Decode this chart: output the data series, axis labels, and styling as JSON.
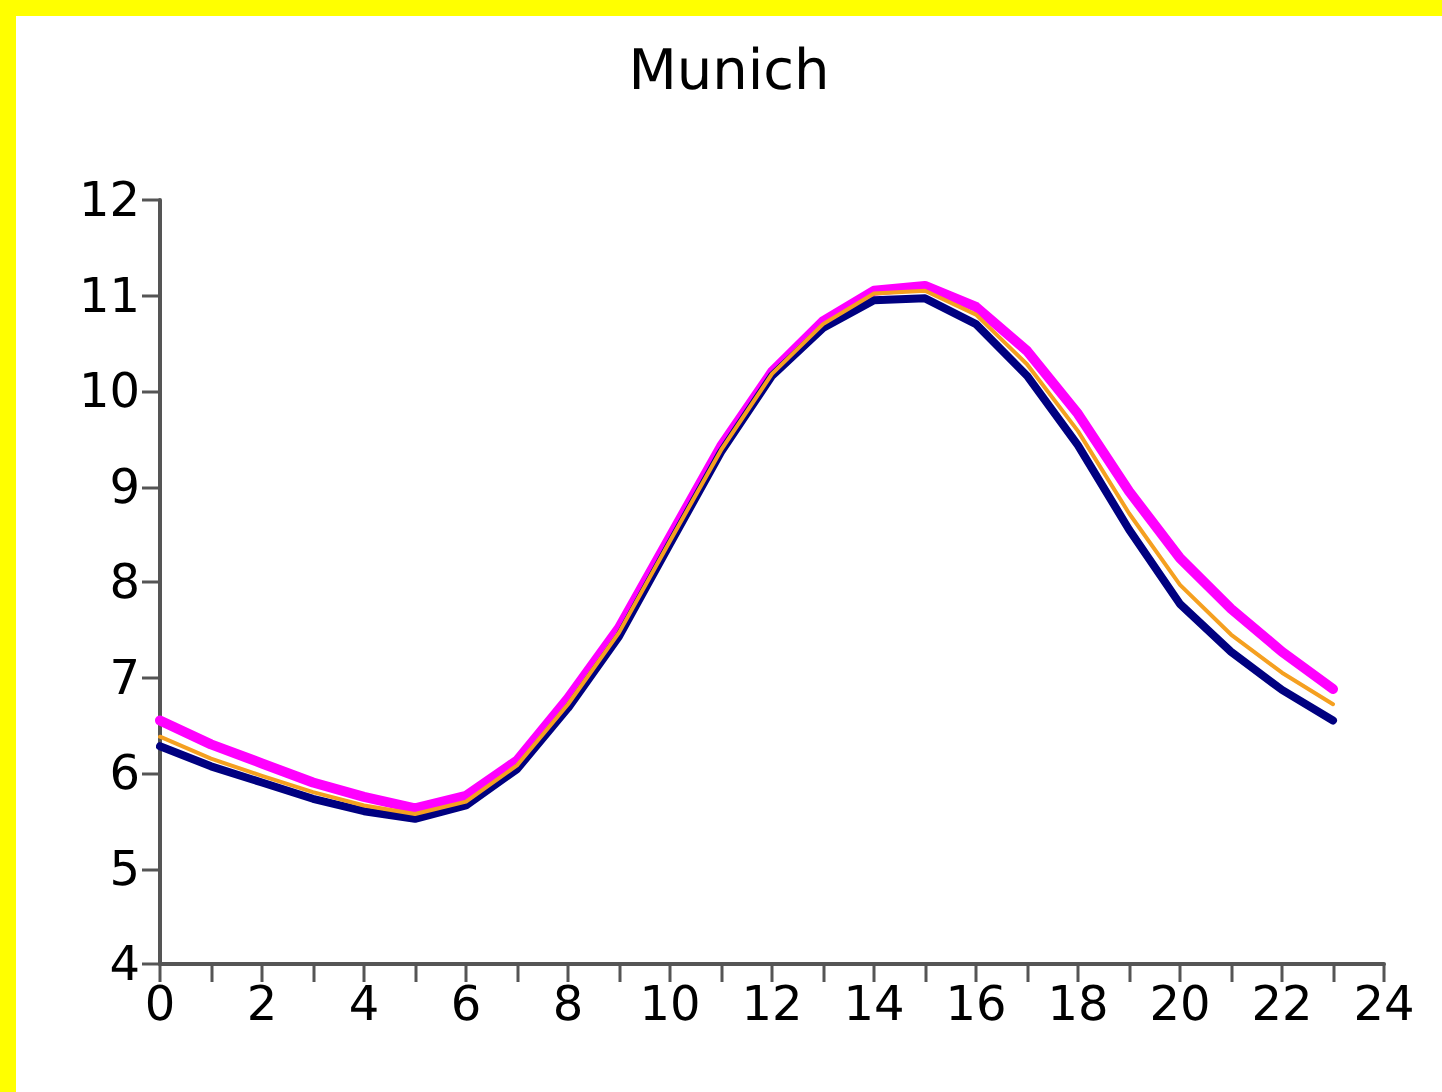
{
  "chart_data": {
    "type": "line",
    "title": "Munich",
    "x": [
      0,
      1,
      2,
      3,
      4,
      5,
      6,
      7,
      8,
      9,
      10,
      11,
      12,
      13,
      14,
      15,
      16,
      17,
      18,
      19,
      20,
      21,
      22,
      23
    ],
    "series": [
      {
        "color": "#ff00ff",
        "values": [
          6.55,
          6.3,
          6.1,
          5.9,
          5.75,
          5.63,
          5.76,
          6.13,
          6.78,
          7.52,
          8.47,
          9.42,
          10.2,
          10.73,
          11.05,
          11.1,
          10.88,
          10.42,
          9.76,
          8.95,
          8.25,
          7.72,
          7.27,
          6.88
        ]
      },
      {
        "color": "#000080",
        "values": [
          6.28,
          6.07,
          5.9,
          5.73,
          5.6,
          5.52,
          5.66,
          6.04,
          6.68,
          7.43,
          8.4,
          9.36,
          10.16,
          10.66,
          10.95,
          10.97,
          10.7,
          10.16,
          9.43,
          8.55,
          7.77,
          7.27,
          6.87,
          6.55
        ]
      },
      {
        "color": "#f5a020",
        "values": [
          6.38,
          6.15,
          5.97,
          5.8,
          5.66,
          5.57,
          5.7,
          6.08,
          6.72,
          7.47,
          8.43,
          9.38,
          10.18,
          10.7,
          11.02,
          11.05,
          10.8,
          10.28,
          9.58,
          8.72,
          7.97,
          7.45,
          7.05,
          6.72
        ]
      }
    ],
    "xlim": [
      0,
      24
    ],
    "xticks": [
      0,
      2,
      4,
      6,
      8,
      10,
      12,
      14,
      16,
      18,
      20,
      22,
      24
    ],
    "ylim": [
      4,
      12
    ],
    "yticks": [
      4,
      5,
      6,
      7,
      8,
      9,
      10,
      11,
      12
    ],
    "grid": false,
    "marker": "none",
    "line_style": "solid"
  }
}
